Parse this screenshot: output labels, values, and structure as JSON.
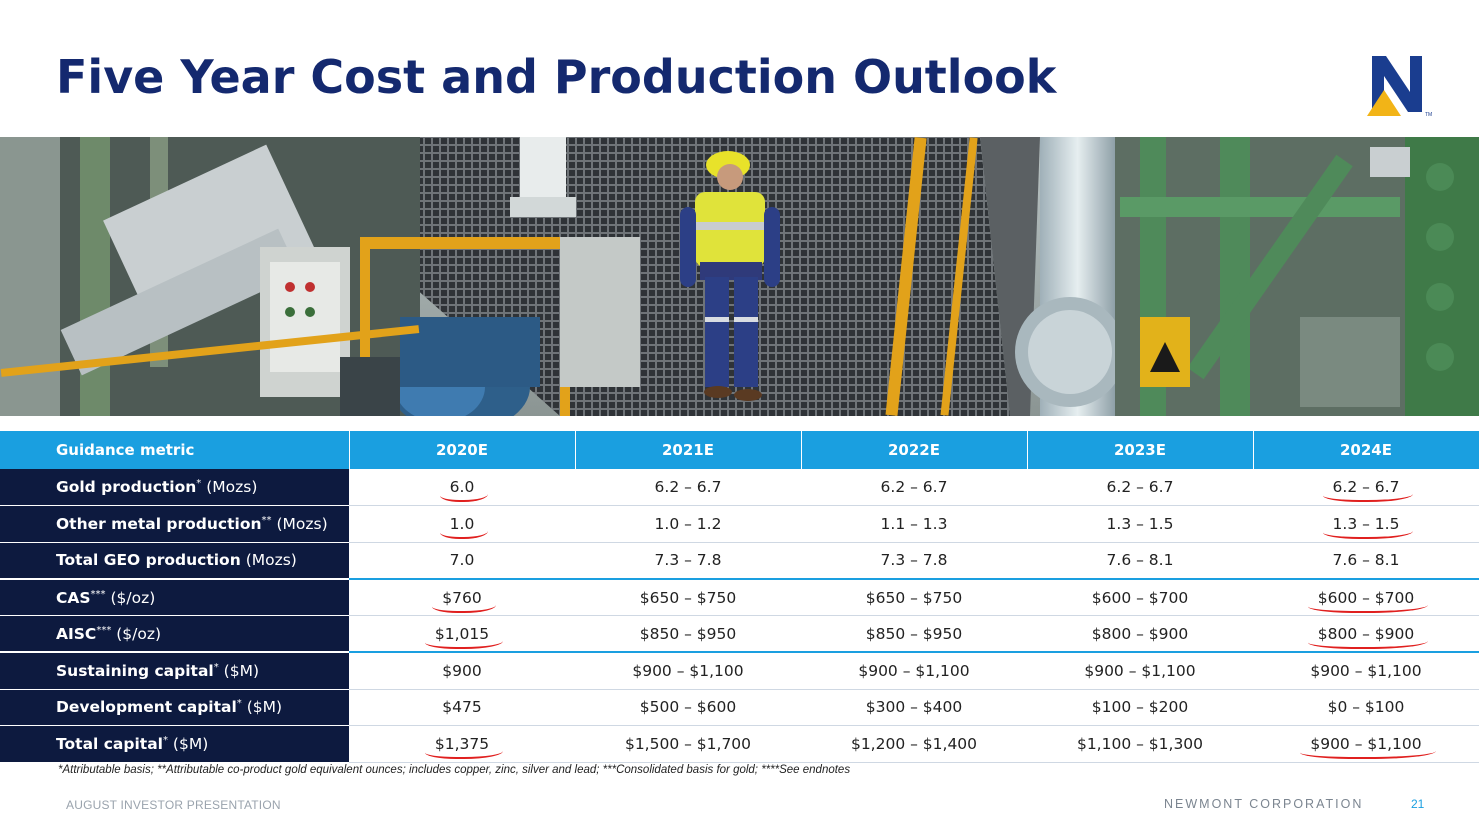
{
  "slide": {
    "title": "Five Year Cost and Production Outlook",
    "brand_color": "#14296f",
    "accent_color": "#1a9fe0",
    "logo_colors": {
      "letter": "#1a3d8f",
      "triangle": "#f2b417"
    }
  },
  "table": {
    "headers": [
      "Guidance metric",
      "2020E",
      "2021E",
      "2022E",
      "2023E",
      "2024E"
    ],
    "rows": [
      {
        "metric": "Gold production",
        "sup": "*",
        "unit": "(Mozs)",
        "values": [
          "6.0",
          "6.2 – 6.7",
          "6.2 – 6.7",
          "6.2 – 6.7",
          "6.2 – 6.7"
        ]
      },
      {
        "metric": "Other metal production",
        "sup": "**",
        "unit": "(Mozs)",
        "values": [
          "1.0",
          "1.0 – 1.2",
          "1.1 – 1.3",
          "1.3 – 1.5",
          "1.3 – 1.5"
        ]
      },
      {
        "metric": "Total GEO production",
        "sup": "",
        "unit": "(Mozs)",
        "values": [
          "7.0",
          "7.3 – 7.8",
          "7.3 – 7.8",
          "7.6 – 8.1",
          "7.6 – 8.1"
        ]
      },
      {
        "metric": "CAS",
        "sup": "***",
        "unit": "($/oz)",
        "values": [
          "$760",
          "$650 – $750",
          "$650 – $750",
          "$600 – $700",
          "$600 – $700"
        ]
      },
      {
        "metric": "AISC",
        "sup": "***",
        "unit": "($/oz)",
        "values": [
          "$1,015",
          "$850 – $950",
          "$850 – $950",
          "$800 – $900",
          "$800 – $900"
        ]
      },
      {
        "metric": "Sustaining capital",
        "sup": "*",
        "unit": "($M)",
        "values": [
          "$900",
          "$900 – $1,100",
          "$900 – $1,100",
          "$900 – $1,100",
          "$900 – $1,100"
        ]
      },
      {
        "metric": "Development capital",
        "sup": "*",
        "unit": "($M)",
        "values": [
          "$475",
          "$500 – $600",
          "$300 – $400",
          "$100 – $200",
          "$0 – $100"
        ]
      },
      {
        "metric": "Total capital",
        "sup": "*",
        "unit": "($M)",
        "values": [
          "$1,375",
          "$1,500 – $1,700",
          "$1,200 – $1,400",
          "$1,100 – $1,300",
          "$900 – $1,100"
        ]
      }
    ]
  },
  "footnote": "*Attributable basis; **Attributable co-product gold equivalent ounces; includes copper, zinc, silver and lead; ***Consolidated basis for gold; ****See endnotes",
  "footer": {
    "left": "AUGUST INVESTOR PRESENTATION",
    "right": "NEWMONT CORPORATION",
    "page": "21"
  }
}
